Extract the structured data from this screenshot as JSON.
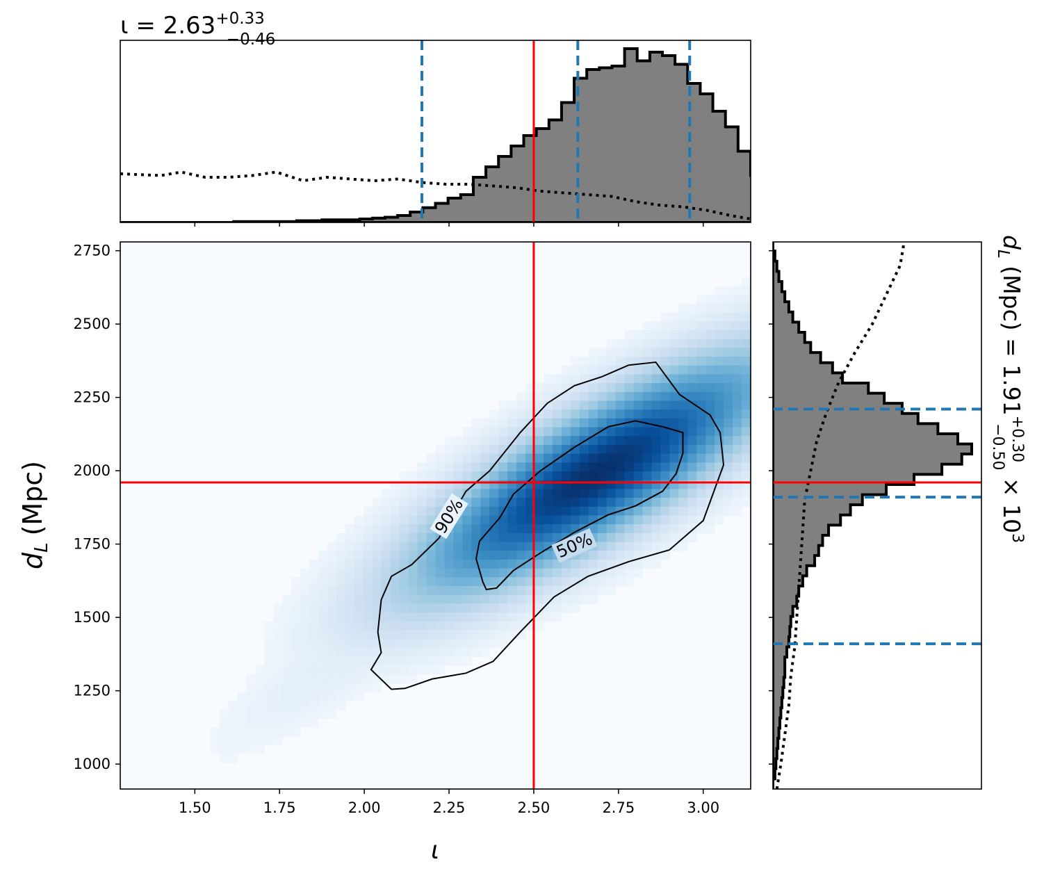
{
  "chart_data": [
    {
      "panel": "top-marginal",
      "type": "histogram",
      "variable": "ι",
      "title": {
        "lhs": "ι = 2.63",
        "sup": "+0.33",
        "sub": "−0.46"
      },
      "xlim": [
        1.28,
        3.14
      ],
      "injected_value": 2.5,
      "quantiles": [
        2.17,
        2.63,
        2.96
      ],
      "histogram": {
        "edges_start": 1.28,
        "bin_width": 0.0372,
        "density": [
          0.0,
          0.0,
          0.0,
          0.0,
          0.0,
          0.0,
          0.0,
          0.0,
          0.0,
          0.005,
          0.005,
          0.005,
          0.005,
          0.005,
          0.01,
          0.01,
          0.015,
          0.015,
          0.015,
          0.02,
          0.025,
          0.03,
          0.04,
          0.06,
          0.085,
          0.11,
          0.14,
          0.16,
          0.26,
          0.32,
          0.38,
          0.44,
          0.5,
          0.54,
          0.59,
          0.69,
          0.83,
          0.88,
          0.89,
          0.9,
          1.0,
          0.93,
          0.98,
          0.96,
          0.91,
          0.8,
          0.74,
          0.64,
          0.55,
          0.41,
          0.27,
          0.16,
          0.06
        ]
      },
      "prior": {
        "x": [
          1.28,
          1.4,
          1.46,
          1.53,
          1.6,
          1.67,
          1.74,
          1.82,
          1.89,
          1.96,
          2.03,
          2.1,
          2.17,
          2.24,
          2.31,
          2.38,
          2.45,
          2.52,
          2.59,
          2.66,
          2.73,
          2.8,
          2.87,
          2.94,
          3.01,
          3.08,
          3.14
        ],
        "density": [
          0.28,
          0.27,
          0.29,
          0.26,
          0.26,
          0.27,
          0.29,
          0.24,
          0.26,
          0.25,
          0.24,
          0.25,
          0.23,
          0.22,
          0.22,
          0.21,
          0.2,
          0.18,
          0.17,
          0.16,
          0.15,
          0.12,
          0.1,
          0.09,
          0.07,
          0.04,
          0.02
        ]
      }
    },
    {
      "panel": "joint",
      "type": "heatmap",
      "xlabel": "ι",
      "ylabel": {
        "main": "d",
        "sub": "L",
        "unit": "(Mpc)"
      },
      "xlim": [
        1.28,
        3.14
      ],
      "ylim": [
        915,
        2780
      ],
      "xticks": [
        "1.50",
        "1.75",
        "2.00",
        "2.25",
        "2.50",
        "2.75",
        "3.00"
      ],
      "yticks": [
        "1000",
        "1250",
        "1500",
        "1750",
        "2000",
        "2250",
        "2500",
        "2750"
      ],
      "injected": {
        "x": 2.5,
        "y": 1960
      },
      "contours": [
        {
          "label": "90%",
          "points": [
            [
              2.02,
              1322
            ],
            [
              2.08,
              1255
            ],
            [
              2.12,
              1258
            ],
            [
              2.2,
              1290
            ],
            [
              2.3,
              1310
            ],
            [
              2.38,
              1350
            ],
            [
              2.46,
              1450
            ],
            [
              2.56,
              1570
            ],
            [
              2.66,
              1640
            ],
            [
              2.78,
              1690
            ],
            [
              2.9,
              1730
            ],
            [
              3.0,
              1830
            ],
            [
              3.06,
              2020
            ],
            [
              3.05,
              2130
            ],
            [
              3.02,
              2190
            ],
            [
              2.93,
              2260
            ],
            [
              2.86,
              2370
            ],
            [
              2.78,
              2360
            ],
            [
              2.7,
              2320
            ],
            [
              2.62,
              2290
            ],
            [
              2.54,
              2230
            ],
            [
              2.46,
              2130
            ],
            [
              2.37,
              2000
            ],
            [
              2.3,
              1930
            ],
            [
              2.22,
              1770
            ],
            [
              2.14,
              1680
            ],
            [
              2.08,
              1640
            ],
            [
              2.05,
              1560
            ],
            [
              2.04,
              1450
            ],
            [
              2.05,
              1380
            ],
            [
              2.02,
              1322
            ]
          ]
        },
        {
          "label": "50%",
          "points": [
            [
              2.36,
              1595
            ],
            [
              2.39,
              1600
            ],
            [
              2.44,
              1660
            ],
            [
              2.52,
              1720
            ],
            [
              2.62,
              1790
            ],
            [
              2.72,
              1850
            ],
            [
              2.8,
              1880
            ],
            [
              2.88,
              1930
            ],
            [
              2.92,
              1990
            ],
            [
              2.94,
              2060
            ],
            [
              2.94,
              2130
            ],
            [
              2.88,
              2150
            ],
            [
              2.8,
              2170
            ],
            [
              2.72,
              2150
            ],
            [
              2.62,
              2080
            ],
            [
              2.52,
              2000
            ],
            [
              2.44,
              1920
            ],
            [
              2.4,
              1840
            ],
            [
              2.34,
              1760
            ],
            [
              2.33,
              1700
            ],
            [
              2.35,
              1620
            ],
            [
              2.36,
              1595
            ]
          ]
        }
      ],
      "contour_labels": [
        "90%",
        "50%"
      ],
      "colormap": "Blues",
      "density_peak": {
        "x": 2.68,
        "y": 1985
      }
    },
    {
      "panel": "right-marginal",
      "type": "histogram",
      "variable": "d_L (Mpc)",
      "title": {
        "lhs": "d",
        "lhs_sub": "L",
        "rest": " (Mpc) = 1.91",
        "sup": "+0.30",
        "sub": "−0.50",
        "tail": " × 10",
        "exp": "3"
      },
      "ylim": [
        915,
        2780
      ],
      "injected_value": 1960,
      "quantiles": [
        1410,
        1910,
        2210
      ],
      "histogram": {
        "edges_start": 915,
        "bin_width": 34.6,
        "density": [
          0.0,
          0.01,
          0.015,
          0.02,
          0.025,
          0.03,
          0.035,
          0.04,
          0.045,
          0.05,
          0.055,
          0.06,
          0.06,
          0.07,
          0.08,
          0.085,
          0.09,
          0.1,
          0.12,
          0.13,
          0.15,
          0.17,
          0.21,
          0.23,
          0.25,
          0.28,
          0.34,
          0.39,
          0.45,
          0.57,
          0.71,
          0.85,
          0.95,
          1.0,
          0.93,
          0.83,
          0.73,
          0.65,
          0.56,
          0.48,
          0.35,
          0.3,
          0.24,
          0.19,
          0.16,
          0.13,
          0.1,
          0.08,
          0.06,
          0.045,
          0.03,
          0.02,
          0.01,
          0.0
        ]
      },
      "prior": {
        "y": [
          915,
          1000,
          1100,
          1200,
          1300,
          1400,
          1500,
          1600,
          1700,
          1800,
          1900,
          2000,
          2100,
          2200,
          2300,
          2400,
          2500,
          2600,
          2700,
          2780
        ],
        "density": [
          0.02,
          0.04,
          0.06,
          0.08,
          0.09,
          0.11,
          0.12,
          0.13,
          0.14,
          0.15,
          0.16,
          0.19,
          0.22,
          0.27,
          0.33,
          0.41,
          0.5,
          0.57,
          0.64,
          0.66
        ]
      }
    }
  ],
  "colors": {
    "histogram_fill": "#808080",
    "injected": "#ff0000",
    "quantile": "#1f77b4",
    "contour": "#000000"
  }
}
